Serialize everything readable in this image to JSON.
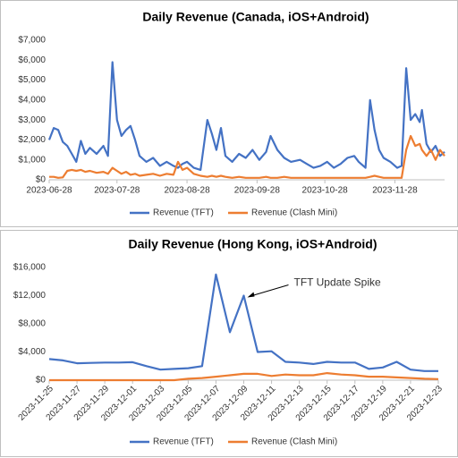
{
  "chart_data": [
    {
      "type": "line",
      "title": "Daily Revenue (Canada, iOS+Android)",
      "x": [
        "2023-06-28",
        "2023-06-30",
        "2023-07-02",
        "2023-07-04",
        "2023-07-06",
        "2023-07-08",
        "2023-07-10",
        "2023-07-12",
        "2023-07-14",
        "2023-07-16",
        "2023-07-19",
        "2023-07-22",
        "2023-07-24",
        "2023-07-26",
        "2023-07-28",
        "2023-07-30",
        "2023-08-01",
        "2023-08-03",
        "2023-08-05",
        "2023-08-07",
        "2023-08-10",
        "2023-08-13",
        "2023-08-16",
        "2023-08-19",
        "2023-08-22",
        "2023-08-24",
        "2023-08-26",
        "2023-08-28",
        "2023-08-31",
        "2023-09-03",
        "2023-09-06",
        "2023-09-08",
        "2023-09-10",
        "2023-09-12",
        "2023-09-14",
        "2023-09-17",
        "2023-09-20",
        "2023-09-23",
        "2023-09-26",
        "2023-09-29",
        "2023-10-02",
        "2023-10-04",
        "2023-10-07",
        "2023-10-10",
        "2023-10-13",
        "2023-10-17",
        "2023-10-20",
        "2023-10-23",
        "2023-10-26",
        "2023-10-29",
        "2023-11-01",
        "2023-11-04",
        "2023-11-07",
        "2023-11-10",
        "2023-11-12",
        "2023-11-15",
        "2023-11-17",
        "2023-11-19",
        "2023-11-21",
        "2023-11-23",
        "2023-11-26",
        "2023-11-29",
        "2023-12-01",
        "2023-12-03",
        "2023-12-05",
        "2023-12-07",
        "2023-12-09",
        "2023-12-10",
        "2023-12-12",
        "2023-12-14",
        "2023-12-16",
        "2023-12-18",
        "2023-12-20"
      ],
      "series": [
        {
          "name": "Revenue (TFT)",
          "color": "#4472c4",
          "values": [
            2000,
            2600,
            2500,
            1900,
            1700,
            1300,
            900,
            1950,
            1300,
            1600,
            1300,
            1700,
            1200,
            5900,
            3000,
            2200,
            2500,
            2700,
            2000,
            1200,
            900,
            1100,
            700,
            900,
            700,
            600,
            800,
            900,
            600,
            500,
            3000,
            2300,
            1500,
            2600,
            1200,
            900,
            1300,
            1100,
            1500,
            1000,
            1400,
            2200,
            1500,
            1100,
            900,
            1000,
            800,
            600,
            700,
            900,
            600,
            800,
            1100,
            1200,
            900,
            600,
            4000,
            2500,
            1500,
            1100,
            900,
            600,
            700,
            5600,
            3000,
            3300,
            2900,
            3500,
            1800,
            1400,
            1700,
            1200,
            1400
          ]
        },
        {
          "name": "Revenue (Clash Mini)",
          "color": "#ed7d31",
          "values": [
            150,
            150,
            100,
            120,
            450,
            500,
            450,
            500,
            400,
            450,
            350,
            400,
            300,
            600,
            450,
            300,
            400,
            250,
            300,
            200,
            250,
            300,
            200,
            300,
            250,
            900,
            500,
            600,
            300,
            200,
            150,
            200,
            150,
            200,
            150,
            100,
            150,
            100,
            100,
            100,
            150,
            100,
            100,
            150,
            100,
            100,
            100,
            100,
            100,
            100,
            100,
            100,
            100,
            100,
            100,
            100,
            150,
            200,
            150,
            100,
            100,
            100,
            100,
            1500,
            2200,
            1700,
            1800,
            1500,
            1200,
            1500,
            1000,
            1500,
            1200
          ]
        }
      ],
      "xlim": [
        "2023-06-28",
        "2023-12-20"
      ],
      "xticks": [
        "2023-06-28",
        "2023-07-28",
        "2023-08-28",
        "2023-09-28",
        "2023-10-28",
        "2023-11-28"
      ],
      "ylim": [
        0,
        7000
      ],
      "yticks": [
        {
          "value": 0,
          "label": "$0"
        },
        {
          "value": 1000,
          "label": "$1,000"
        },
        {
          "value": 2000,
          "label": "$2,000"
        },
        {
          "value": 3000,
          "label": "$3,000"
        },
        {
          "value": 4000,
          "label": "$4,000"
        },
        {
          "value": 5000,
          "label": "$5,000"
        },
        {
          "value": 6000,
          "label": "$6,000"
        },
        {
          "value": 7000,
          "label": "$7,000"
        }
      ],
      "legend": "bottom"
    },
    {
      "type": "line",
      "title": "Daily Revenue (Hong Kong, iOS+Android)",
      "x": [
        "2023-11-25",
        "2023-11-26",
        "2023-11-27",
        "2023-11-28",
        "2023-11-29",
        "2023-11-30",
        "2023-12-01",
        "2023-12-02",
        "2023-12-03",
        "2023-12-04",
        "2023-12-05",
        "2023-12-06",
        "2023-12-07",
        "2023-12-08",
        "2023-12-09",
        "2023-12-10",
        "2023-12-11",
        "2023-12-12",
        "2023-12-13",
        "2023-12-14",
        "2023-12-15",
        "2023-12-16",
        "2023-12-17",
        "2023-12-18",
        "2023-12-19",
        "2023-12-20",
        "2023-12-21",
        "2023-12-22",
        "2023-12-23"
      ],
      "series": [
        {
          "name": "Revenue (TFT)",
          "color": "#4472c4",
          "values": [
            3000,
            2800,
            2400,
            2450,
            2500,
            2500,
            2550,
            2000,
            1500,
            1600,
            1700,
            2000,
            15000,
            6800,
            12000,
            4000,
            4100,
            2600,
            2500,
            2300,
            2600,
            2500,
            2500,
            1600,
            1800,
            2600,
            1500,
            1300,
            1300
          ]
        },
        {
          "name": "Revenue (Clash Mini)",
          "color": "#ed7d31",
          "values": [
            0,
            0,
            0,
            0,
            0,
            0,
            0,
            0,
            0,
            0,
            200,
            300,
            500,
            700,
            900,
            900,
            600,
            800,
            700,
            700,
            1000,
            800,
            700,
            500,
            500,
            400,
            300,
            200,
            150
          ]
        }
      ],
      "xlim": [
        "2023-11-25",
        "2023-12-23"
      ],
      "xticks": [
        "2023-11-25",
        "2023-11-27",
        "2023-11-29",
        "2023-12-01",
        "2023-12-03",
        "2023-12-05",
        "2023-12-07",
        "2023-12-09",
        "2023-12-11",
        "2023-12-13",
        "2023-12-15",
        "2023-12-17",
        "2023-12-19",
        "2023-12-21",
        "2023-12-23"
      ],
      "ylim": [
        0,
        16000
      ],
      "yticks": [
        {
          "value": 0,
          "label": "$0"
        },
        {
          "value": 4000,
          "label": "$4,000"
        },
        {
          "value": 8000,
          "label": "$8,000"
        },
        {
          "value": 12000,
          "label": "$12,000"
        },
        {
          "value": 16000,
          "label": "$16,000"
        }
      ],
      "legend": "bottom",
      "annotation": {
        "text": "TFT Update Spike",
        "x": "2023-12-09",
        "y": 12000
      }
    }
  ]
}
